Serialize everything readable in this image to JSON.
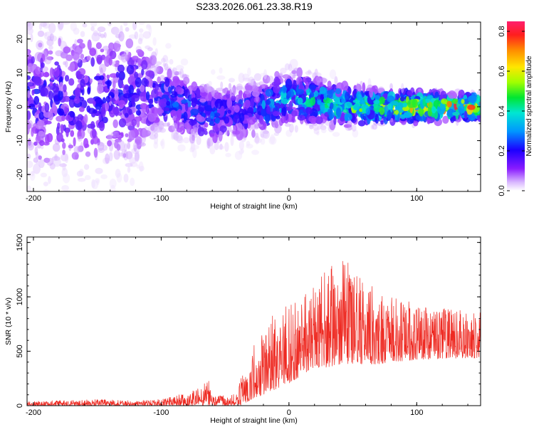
{
  "title": "S233.2026.061.23.38.R19",
  "colors": {
    "snr_line": "#ee2a22",
    "axis": "#000000"
  },
  "chart_data": [
    {
      "type": "heatmap",
      "title": "S233.2026.061.23.38.R19",
      "xlabel": "Height of straight line (km)",
      "ylabel": "Frequency (Hz)",
      "xlim": [
        -205,
        150
      ],
      "ylim": [
        -25,
        25
      ],
      "x_ticks": [
        -200,
        -100,
        0,
        100
      ],
      "x_tick_labels": [
        "-200",
        "-100",
        "0",
        "100"
      ],
      "y_ticks": [
        -20,
        -10,
        0,
        10,
        20
      ],
      "y_tick_labels": [
        "-20",
        "-10",
        "0",
        "10",
        "20"
      ],
      "ridge": {
        "description": "dominant energy concentrated near 0 Hz, widening to the left",
        "center_hz": [
          [
            -100,
            3
          ],
          [
            -60,
            -3
          ],
          [
            -20,
            0
          ],
          [
            0,
            3
          ],
          [
            50,
            0
          ],
          [
            100,
            0
          ],
          [
            150,
            0
          ]
        ],
        "spread_hz": [
          [
            -205,
            20
          ],
          [
            -120,
            18
          ],
          [
            -100,
            8
          ],
          [
            -50,
            7
          ],
          [
            0,
            6
          ],
          [
            50,
            4
          ],
          [
            100,
            3
          ],
          [
            150,
            2
          ]
        ]
      },
      "colorbar": {
        "label": "Normalized spectral amplitude",
        "range": [
          0.0,
          0.85
        ],
        "ticks": [
          0.0,
          0.2,
          0.4,
          0.6,
          0.8
        ],
        "tick_labels": [
          "0.0",
          "0.2",
          "0.4",
          "0.6",
          "0.8"
        ]
      }
    },
    {
      "type": "line",
      "xlabel": "Height of straight line (km)",
      "ylabel": "SNR (10 * v/v)",
      "xlim": [
        -205,
        150
      ],
      "ylim": [
        0,
        1550
      ],
      "x_ticks": [
        -200,
        -100,
        0,
        100
      ],
      "x_tick_labels": [
        "-200",
        "-100",
        "0",
        "100"
      ],
      "y_ticks": [
        0,
        500,
        1000,
        1500
      ],
      "y_tick_labels": [
        "0",
        "500",
        "1000",
        "1500"
      ],
      "envelope": {
        "x": [
          -205,
          -150,
          -120,
          -100,
          -80,
          -70,
          -62,
          -60,
          -40,
          -38,
          -30,
          -27,
          -20,
          -10,
          0,
          10,
          20,
          30,
          40,
          50,
          60,
          70,
          80,
          100,
          120,
          150
        ],
        "low": [
          0,
          0,
          0,
          0,
          0,
          0,
          0,
          0,
          0,
          0,
          50,
          50,
          100,
          150,
          200,
          280,
          350,
          350,
          380,
          380,
          380,
          380,
          400,
          420,
          430,
          440
        ],
        "high": [
          40,
          60,
          45,
          60,
          120,
          170,
          240,
          80,
          120,
          280,
          380,
          620,
          720,
          880,
          950,
          1010,
          1140,
          1250,
          1400,
          1300,
          1150,
          1050,
          1000,
          940,
          900,
          870
        ]
      }
    }
  ]
}
